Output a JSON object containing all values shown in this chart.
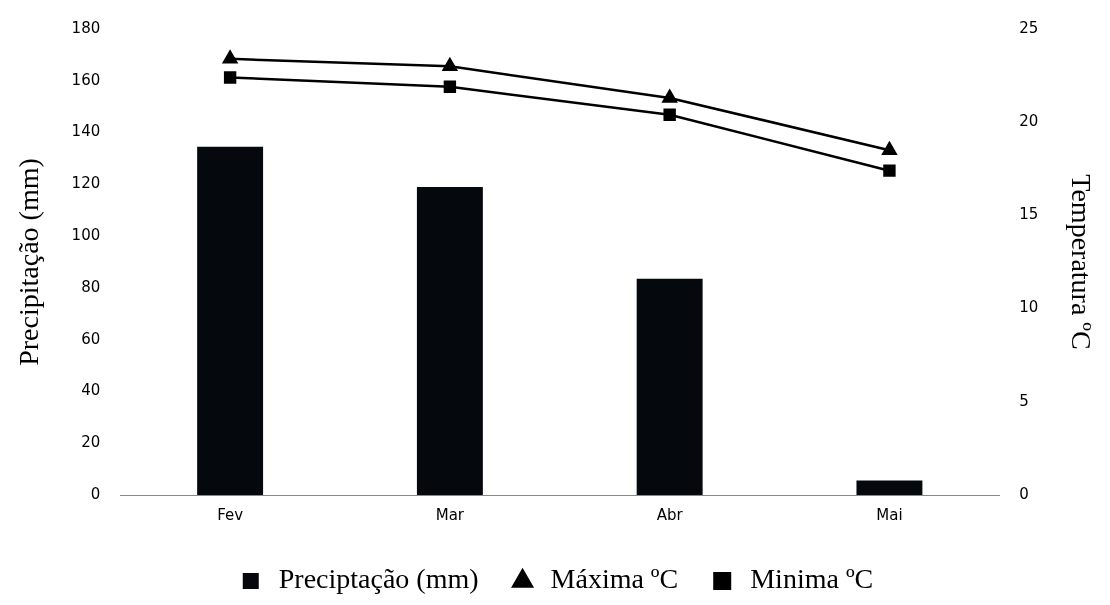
{
  "chart_data": {
    "type": "bar",
    "categories": [
      "Fev",
      "Mar",
      "Abr",
      "Mai"
    ],
    "ylabel": "Precipitação (mm)",
    "y2label": "Temperatura ºC",
    "ylim": [
      0,
      180
    ],
    "yticks": [
      0,
      20,
      40,
      60,
      80,
      100,
      120,
      140,
      160,
      180
    ],
    "y2lim": [
      0,
      25
    ],
    "y2ticks": [
      0,
      5,
      10,
      15,
      20,
      25
    ],
    "grid": false,
    "legend": "bottom",
    "series": [
      {
        "name": "Preciptação (mm)",
        "color": "#05080d",
        "values": [
          134.5,
          119,
          83.5,
          5.6
        ]
      },
      {
        "name": "Máxima ºC",
        "type": "line",
        "axis": "y2",
        "marker": "triangle",
        "line_style": "solid",
        "color": "#000000",
        "values": [
          23.4,
          23.0,
          21.3,
          18.5
        ]
      },
      {
        "name": "Minima ºC",
        "type": "line",
        "axis": "y2",
        "marker": "square",
        "line_style": "solid",
        "color": "#000000",
        "values": [
          22.4,
          21.9,
          20.4,
          17.4
        ]
      }
    ]
  }
}
